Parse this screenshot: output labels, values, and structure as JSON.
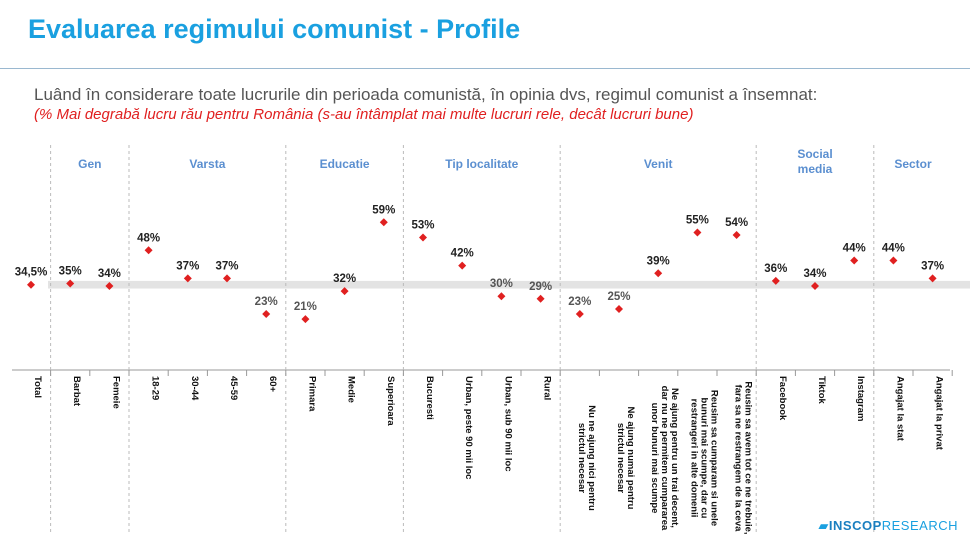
{
  "title": "Evaluarea regimului comunist - Profile",
  "question": "Luând în considerare toate lucrurile din perioada comunistă, în opinia dvs, regimul comunist a însemnat:",
  "subtitle": "(% Mai degrabă lucru rău pentru România (s-au întâmplat mai multe lucruri rele, decât lucruri bune)",
  "logo": {
    "brand": "INSCOP",
    "suffix": "RESEARCH"
  },
  "colors": {
    "title": "#1aa0e0",
    "group": "#5b8fd0",
    "point": "#e02020",
    "band": "#e3e3e3"
  },
  "chart_data": {
    "type": "scatter",
    "groups": [
      {
        "label": "",
        "start": 0,
        "end": 0
      },
      {
        "label": "Gen",
        "start": 1,
        "end": 2
      },
      {
        "label": "Varsta",
        "start": 3,
        "end": 6
      },
      {
        "label": "Educatie",
        "start": 7,
        "end": 9
      },
      {
        "label": "Tip localitate",
        "start": 10,
        "end": 13
      },
      {
        "label": "Venit",
        "start": 14,
        "end": 18
      },
      {
        "label": "Social media",
        "start": 19,
        "end": 21
      },
      {
        "label": "Sector",
        "start": 22,
        "end": 23
      }
    ],
    "categories": [
      "Total",
      "Barbat",
      "Femeie",
      "18-29",
      "30-44",
      "45-59",
      "60+",
      "Primara",
      "Medie",
      "Superioara",
      "Bucuresti",
      "Urban, peste 90 mii loc",
      "Urban, sub 90 mii loc",
      "Rural",
      "Nu ne ajung nici pentru strictul necesar",
      "Ne ajung numai pentru strictul necesar",
      "Ne ajung pentru un trai decent, dar nu ne permitem cumpararea unor bunuri mai scumpe",
      "Reusim sa cumparam si unele bunuri mai scumpe, dar cu restrangeri in alte domenii",
      "Reusim sa avem tot ce ne trebuie, fara sa ne restrangem de la ceva",
      "Facebook",
      "Tiktok",
      "Instagram",
      "Angajat la stat",
      "Angajat la privat"
    ],
    "values": [
      34.5,
      35,
      34,
      48,
      37,
      37,
      23,
      21,
      32,
      59,
      53,
      42,
      30,
      29,
      23,
      25,
      39,
      55,
      54,
      36,
      34,
      44,
      44,
      37
    ],
    "labels": [
      "34,5%",
      "35%",
      "34%",
      "48%",
      "37%",
      "37%",
      "23%",
      "21%",
      "32%",
      "59%",
      "53%",
      "42%",
      "30%",
      "29%",
      "23%",
      "25%",
      "39%",
      "55%",
      "54%",
      "36%",
      "34%",
      "44%",
      "44%",
      "37%"
    ],
    "band": [
      33,
      36
    ]
  }
}
